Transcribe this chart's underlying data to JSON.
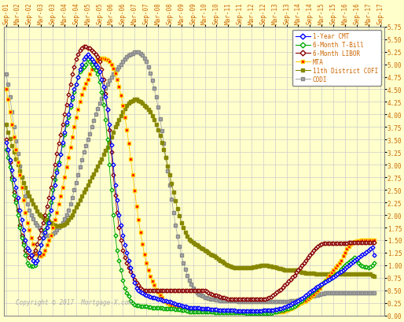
{
  "background_color": "#ffffcc",
  "grid_color": "#cccccc",
  "ylim": [
    0.0,
    5.75
  ],
  "yticks": [
    0.0,
    0.25,
    0.5,
    0.75,
    1.0,
    1.25,
    1.5,
    1.75,
    2.0,
    2.25,
    2.5,
    2.75,
    3.0,
    3.25,
    3.5,
    3.75,
    4.0,
    4.25,
    4.5,
    4.75,
    5.0,
    5.25,
    5.5,
    5.75
  ],
  "copyright_text": "Copyright © 2017  Mortgage-X.com",
  "x_tick_labels": [
    "Sep-01",
    "Mar-02",
    "Sep-02",
    "Mar-03",
    "Sep-03",
    "Mar-04",
    "Sep-04",
    "Mar-05",
    "Sep-05",
    "Mar-06",
    "Sep-06",
    "Mar-07",
    "Sep-07",
    "Mar-08",
    "Sep-08",
    "Mar-09",
    "Sep-09",
    "Mar-10",
    "Sep-10",
    "Mar-11",
    "Sep-11",
    "Mar-12",
    "Sep-12",
    "Mar-13",
    "Sep-13",
    "Mar-14",
    "Sep-14",
    "Mar-15",
    "Sep-15",
    "Mar-16",
    "Sep-16",
    "Mar-17",
    "Sep-17"
  ],
  "x_tick_positions": [
    0,
    6,
    12,
    18,
    24,
    30,
    36,
    42,
    48,
    54,
    60,
    66,
    72,
    78,
    84,
    90,
    96,
    102,
    108,
    114,
    120,
    126,
    132,
    138,
    144,
    150,
    156,
    162,
    168,
    174,
    180,
    186,
    192
  ],
  "series": {
    "1yr_cmt": {
      "label": "1-Year CMT",
      "color": "#0000ff",
      "marker": "D",
      "markersize": 2.5,
      "linewidth": 0.6,
      "markerfacecolor": "white",
      "values": [
        3.45,
        3.3,
        3.1,
        2.9,
        2.7,
        2.55,
        2.35,
        2.1,
        1.9,
        1.7,
        1.5,
        1.35,
        1.3,
        1.2,
        1.1,
        1.05,
        1.1,
        1.25,
        1.4,
        1.55,
        1.65,
        1.75,
        1.85,
        2.1,
        2.35,
        2.6,
        2.85,
        3.0,
        3.2,
        3.45,
        3.65,
        3.85,
        4.0,
        4.2,
        4.35,
        4.5,
        4.6,
        4.75,
        4.9,
        5.0,
        5.1,
        5.15,
        5.2,
        5.15,
        5.1,
        5.05,
        5.0,
        4.95,
        4.85,
        4.7,
        4.55,
        4.35,
        4.1,
        3.8,
        3.4,
        3.0,
        2.6,
        2.3,
        2.0,
        1.8,
        1.6,
        1.4,
        1.25,
        1.1,
        0.95,
        0.8,
        0.65,
        0.55,
        0.5,
        0.47,
        0.45,
        0.42,
        0.4,
        0.38,
        0.37,
        0.36,
        0.35,
        0.34,
        0.33,
        0.32,
        0.31,
        0.3,
        0.29,
        0.28,
        0.27,
        0.26,
        0.24,
        0.23,
        0.22,
        0.21,
        0.2,
        0.19,
        0.18,
        0.17,
        0.16,
        0.16,
        0.16,
        0.15,
        0.15,
        0.15,
        0.14,
        0.14,
        0.13,
        0.13,
        0.13,
        0.12,
        0.12,
        0.12,
        0.12,
        0.11,
        0.11,
        0.11,
        0.11,
        0.1,
        0.1,
        0.1,
        0.1,
        0.1,
        0.09,
        0.09,
        0.09,
        0.09,
        0.09,
        0.09,
        0.09,
        0.09,
        0.09,
        0.09,
        0.09,
        0.09,
        0.09,
        0.09,
        0.1,
        0.1,
        0.1,
        0.11,
        0.11,
        0.11,
        0.12,
        0.12,
        0.13,
        0.14,
        0.16,
        0.17,
        0.18,
        0.2,
        0.22,
        0.24,
        0.26,
        0.28,
        0.3,
        0.32,
        0.34,
        0.37,
        0.4,
        0.43,
        0.46,
        0.49,
        0.52,
        0.56,
        0.58,
        0.61,
        0.63,
        0.65,
        0.67,
        0.7,
        0.72,
        0.74,
        0.76,
        0.79,
        0.82,
        0.85,
        0.88,
        0.91,
        0.94,
        0.97,
        1.0,
        1.03,
        1.06,
        1.09,
        1.12,
        1.15,
        1.18,
        1.21,
        1.24,
        1.27,
        1.3,
        1.33,
        1.36,
        1.2
      ]
    },
    "6mo_tbill": {
      "label": "6-Month T-Bill",
      "color": "#00aa00",
      "marker": "D",
      "markersize": 2.5,
      "linewidth": 0.6,
      "markerfacecolor": "white",
      "values": [
        3.3,
        3.15,
        2.95,
        2.7,
        2.4,
        2.25,
        2.0,
        1.75,
        1.55,
        1.4,
        1.2,
        1.05,
        1.0,
        0.98,
        0.98,
        1.0,
        1.1,
        1.25,
        1.4,
        1.55,
        1.7,
        1.85,
        2.0,
        2.25,
        2.5,
        2.7,
        2.9,
        3.05,
        3.2,
        3.4,
        3.6,
        3.8,
        3.95,
        4.15,
        4.3,
        4.45,
        4.6,
        4.75,
        4.85,
        4.9,
        4.95,
        5.0,
        5.1,
        5.05,
        5.0,
        4.95,
        4.88,
        4.8,
        4.65,
        4.45,
        4.2,
        3.9,
        3.5,
        3.0,
        2.5,
        2.0,
        1.6,
        1.3,
        1.1,
        0.9,
        0.7,
        0.55,
        0.45,
        0.38,
        0.3,
        0.25,
        0.22,
        0.2,
        0.2,
        0.18,
        0.18,
        0.18,
        0.18,
        0.17,
        0.17,
        0.16,
        0.16,
        0.16,
        0.15,
        0.15,
        0.15,
        0.14,
        0.14,
        0.14,
        0.13,
        0.13,
        0.13,
        0.12,
        0.12,
        0.12,
        0.11,
        0.11,
        0.1,
        0.09,
        0.08,
        0.08,
        0.07,
        0.07,
        0.07,
        0.07,
        0.07,
        0.07,
        0.07,
        0.07,
        0.07,
        0.07,
        0.07,
        0.06,
        0.06,
        0.06,
        0.06,
        0.06,
        0.06,
        0.06,
        0.06,
        0.06,
        0.06,
        0.06,
        0.06,
        0.06,
        0.06,
        0.06,
        0.06,
        0.05,
        0.05,
        0.05,
        0.05,
        0.05,
        0.05,
        0.05,
        0.05,
        0.05,
        0.04,
        0.04,
        0.04,
        0.04,
        0.05,
        0.06,
        0.07,
        0.08,
        0.09,
        0.1,
        0.11,
        0.12,
        0.13,
        0.14,
        0.15,
        0.17,
        0.19,
        0.21,
        0.24,
        0.27,
        0.3,
        0.34,
        0.38,
        0.41,
        0.44,
        0.47,
        0.5,
        0.53,
        0.56,
        0.59,
        0.62,
        0.65,
        0.68,
        0.7,
        0.72,
        0.75,
        0.78,
        0.81,
        0.84,
        0.88,
        0.92,
        0.96,
        1.0,
        1.03,
        1.06,
        1.09,
        1.12,
        1.15,
        1.1,
        1.05,
        1.0,
        0.98,
        0.97,
        0.96,
        0.95,
        0.97,
        1.0,
        1.05
      ]
    },
    "6mo_libor": {
      "label": "6-Month LIBOR",
      "color": "#880000",
      "marker": "D",
      "markersize": 2.5,
      "linewidth": 0.6,
      "markerfacecolor": "white",
      "values": [
        3.5,
        3.3,
        3.05,
        2.75,
        2.45,
        2.3,
        2.1,
        1.8,
        1.6,
        1.45,
        1.3,
        1.2,
        1.15,
        1.18,
        1.22,
        1.3,
        1.42,
        1.55,
        1.7,
        1.85,
        2.0,
        2.18,
        2.35,
        2.55,
        2.75,
        3.0,
        3.22,
        3.42,
        3.6,
        3.8,
        4.0,
        4.2,
        4.4,
        4.6,
        4.8,
        4.95,
        5.1,
        5.2,
        5.28,
        5.32,
        5.35,
        5.35,
        5.33,
        5.32,
        5.28,
        5.25,
        5.2,
        5.15,
        5.05,
        4.9,
        4.7,
        4.42,
        4.1,
        3.7,
        3.25,
        2.8,
        2.4,
        2.05,
        1.75,
        1.5,
        1.3,
        1.15,
        1.05,
        0.95,
        0.88,
        0.8,
        0.72,
        0.65,
        0.6,
        0.55,
        0.52,
        0.5,
        0.5,
        0.5,
        0.5,
        0.5,
        0.5,
        0.5,
        0.5,
        0.5,
        0.5,
        0.5,
        0.5,
        0.5,
        0.5,
        0.5,
        0.5,
        0.5,
        0.5,
        0.5,
        0.5,
        0.5,
        0.5,
        0.5,
        0.5,
        0.5,
        0.5,
        0.5,
        0.5,
        0.5,
        0.5,
        0.5,
        0.5,
        0.48,
        0.45,
        0.43,
        0.42,
        0.41,
        0.4,
        0.38,
        0.37,
        0.36,
        0.35,
        0.34,
        0.33,
        0.33,
        0.32,
        0.32,
        0.32,
        0.32,
        0.32,
        0.32,
        0.32,
        0.32,
        0.32,
        0.32,
        0.32,
        0.32,
        0.32,
        0.32,
        0.32,
        0.32,
        0.32,
        0.33,
        0.34,
        0.35,
        0.37,
        0.4,
        0.43,
        0.46,
        0.49,
        0.52,
        0.56,
        0.6,
        0.64,
        0.68,
        0.72,
        0.76,
        0.8,
        0.85,
        0.9,
        0.95,
        1.0,
        1.05,
        1.1,
        1.15,
        1.2,
        1.25,
        1.3,
        1.35,
        1.38,
        1.4,
        1.42,
        1.43,
        1.44,
        1.44,
        1.44,
        1.44,
        1.44,
        1.44,
        1.44,
        1.44,
        1.44,
        1.44,
        1.44,
        1.44,
        1.45,
        1.45,
        1.45,
        1.45,
        1.45,
        1.45,
        1.45,
        1.45,
        1.45,
        1.45,
        1.45,
        1.45,
        1.45,
        1.45
      ]
    },
    "mta": {
      "label": "MTA",
      "color": "#ffcc00",
      "marker": "s",
      "markersize": 3.5,
      "linewidth": 0.6,
      "markerfacecolor": "#ff0000",
      "markeredgecolor": "#ffcc00",
      "values": [
        4.5,
        4.3,
        4.05,
        3.8,
        3.55,
        3.3,
        3.05,
        2.8,
        2.55,
        2.3,
        2.05,
        1.85,
        1.7,
        1.55,
        1.42,
        1.3,
        1.22,
        1.18,
        1.18,
        1.22,
        1.3,
        1.4,
        1.5,
        1.6,
        1.75,
        1.9,
        2.05,
        2.22,
        2.38,
        2.55,
        2.75,
        2.95,
        3.15,
        3.35,
        3.55,
        3.75,
        3.95,
        4.1,
        4.25,
        4.4,
        4.52,
        4.62,
        4.7,
        4.8,
        4.9,
        4.98,
        5.05,
        5.1,
        5.12,
        5.12,
        5.12,
        5.1,
        5.08,
        5.05,
        5.0,
        4.92,
        4.82,
        4.7,
        4.55,
        4.38,
        4.18,
        3.95,
        3.7,
        3.42,
        3.12,
        2.8,
        2.48,
        2.18,
        1.9,
        1.65,
        1.42,
        1.22,
        1.05,
        0.9,
        0.78,
        0.68,
        0.6,
        0.52,
        0.46,
        0.4,
        0.35,
        0.3,
        0.27,
        0.25,
        0.22,
        0.2,
        0.18,
        0.17,
        0.16,
        0.15,
        0.15,
        0.14,
        0.13,
        0.13,
        0.12,
        0.12,
        0.11,
        0.11,
        0.11,
        0.1,
        0.1,
        0.1,
        0.1,
        0.1,
        0.1,
        0.1,
        0.1,
        0.1,
        0.1,
        0.09,
        0.09,
        0.09,
        0.09,
        0.09,
        0.09,
        0.09,
        0.09,
        0.09,
        0.09,
        0.08,
        0.08,
        0.08,
        0.08,
        0.08,
        0.08,
        0.08,
        0.08,
        0.08,
        0.08,
        0.08,
        0.08,
        0.08,
        0.08,
        0.08,
        0.08,
        0.08,
        0.08,
        0.08,
        0.08,
        0.08,
        0.08,
        0.08,
        0.08,
        0.09,
        0.1,
        0.12,
        0.14,
        0.16,
        0.18,
        0.2,
        0.22,
        0.24,
        0.26,
        0.28,
        0.3,
        0.32,
        0.35,
        0.38,
        0.42,
        0.46,
        0.5,
        0.55,
        0.6,
        0.65,
        0.7,
        0.75,
        0.8,
        0.85,
        0.9,
        0.95,
        1.0,
        1.05,
        1.1,
        1.18,
        1.25,
        1.32,
        1.38,
        1.42,
        1.45,
        1.47,
        1.48,
        1.49,
        1.5,
        1.5,
        1.5,
        1.5,
        1.5,
        1.5,
        1.5,
        1.5
      ]
    },
    "cofi": {
      "label": "11th District COFI",
      "color": "#888800",
      "marker": "s",
      "markersize": 3.5,
      "linewidth": 0.6,
      "markerfacecolor": "#888800",
      "markeredgecolor": "#888800",
      "values": [
        3.8,
        3.65,
        3.52,
        3.38,
        3.25,
        3.12,
        3.0,
        2.88,
        2.75,
        2.65,
        2.55,
        2.45,
        2.38,
        2.3,
        2.22,
        2.15,
        2.08,
        2.02,
        1.98,
        1.95,
        1.92,
        1.9,
        1.88,
        1.85,
        1.82,
        1.8,
        1.78,
        1.78,
        1.78,
        1.8,
        1.82,
        1.85,
        1.9,
        1.95,
        2.0,
        2.08,
        2.15,
        2.22,
        2.3,
        2.38,
        2.45,
        2.52,
        2.6,
        2.68,
        2.75,
        2.82,
        2.9,
        2.98,
        3.05,
        3.12,
        3.2,
        3.28,
        3.35,
        3.45,
        3.55,
        3.65,
        3.75,
        3.82,
        3.9,
        3.98,
        4.05,
        4.12,
        4.18,
        4.22,
        4.25,
        4.28,
        4.3,
        4.3,
        4.28,
        4.25,
        4.22,
        4.18,
        4.14,
        4.1,
        4.05,
        3.98,
        3.9,
        3.8,
        3.7,
        3.58,
        3.45,
        3.3,
        3.15,
        2.98,
        2.8,
        2.62,
        2.45,
        2.28,
        2.12,
        1.98,
        1.85,
        1.75,
        1.65,
        1.58,
        1.52,
        1.48,
        1.45,
        1.42,
        1.4,
        1.38,
        1.35,
        1.32,
        1.3,
        1.28,
        1.25,
        1.22,
        1.2,
        1.18,
        1.15,
        1.12,
        1.1,
        1.08,
        1.05,
        1.02,
        1.0,
        0.98,
        0.96,
        0.95,
        0.95,
        0.95,
        0.95,
        0.95,
        0.95,
        0.95,
        0.95,
        0.95,
        0.95,
        0.96,
        0.97,
        0.98,
        0.99,
        1.0,
        1.0,
        1.0,
        1.0,
        0.99,
        0.98,
        0.97,
        0.96,
        0.95,
        0.94,
        0.93,
        0.92,
        0.91,
        0.9,
        0.9,
        0.9,
        0.9,
        0.9,
        0.9,
        0.9,
        0.88,
        0.86,
        0.85,
        0.84,
        0.84,
        0.84,
        0.84,
        0.84,
        0.83,
        0.83,
        0.83,
        0.83,
        0.82,
        0.82,
        0.82,
        0.82,
        0.82,
        0.82,
        0.82,
        0.82,
        0.82,
        0.82,
        0.82,
        0.82,
        0.82,
        0.82,
        0.82,
        0.82,
        0.82,
        0.82,
        0.82,
        0.82,
        0.82,
        0.82,
        0.82,
        0.82,
        0.82,
        0.8,
        0.78
      ]
    },
    "codi": {
      "label": "CODI",
      "color": "#aaaaaa",
      "marker": "s",
      "markersize": 3.5,
      "linewidth": 0.6,
      "markerfacecolor": "#aaaaaa",
      "markeredgecolor": "#888888",
      "values": [
        4.8,
        4.6,
        4.35,
        4.05,
        3.75,
        3.48,
        3.22,
        2.98,
        2.75,
        2.55,
        2.38,
        2.22,
        2.1,
        2.0,
        1.92,
        1.85,
        1.8,
        1.75,
        1.7,
        1.65,
        1.62,
        1.6,
        1.6,
        1.6,
        1.62,
        1.65,
        1.7,
        1.75,
        1.8,
        1.85,
        1.92,
        2.0,
        2.1,
        2.22,
        2.35,
        2.5,
        2.65,
        2.8,
        2.95,
        3.1,
        3.25,
        3.38,
        3.5,
        3.62,
        3.75,
        3.88,
        4.0,
        4.12,
        4.22,
        4.32,
        4.42,
        4.52,
        4.6,
        4.68,
        4.75,
        4.8,
        4.85,
        4.9,
        4.95,
        5.0,
        5.05,
        5.1,
        5.15,
        5.18,
        5.2,
        5.22,
        5.25,
        5.25,
        5.25,
        5.22,
        5.18,
        5.12,
        5.05,
        4.95,
        4.82,
        4.68,
        4.52,
        4.35,
        4.15,
        3.92,
        3.68,
        3.42,
        3.15,
        2.88,
        2.6,
        2.32,
        2.05,
        1.8,
        1.58,
        1.38,
        1.2,
        1.05,
        0.92,
        0.8,
        0.7,
        0.62,
        0.55,
        0.5,
        0.45,
        0.42,
        0.4,
        0.38,
        0.36,
        0.35,
        0.34,
        0.33,
        0.32,
        0.32,
        0.31,
        0.31,
        0.3,
        0.3,
        0.3,
        0.3,
        0.3,
        0.29,
        0.29,
        0.29,
        0.29,
        0.28,
        0.28,
        0.28,
        0.28,
        0.28,
        0.27,
        0.27,
        0.27,
        0.27,
        0.27,
        0.27,
        0.27,
        0.27,
        0.27,
        0.27,
        0.27,
        0.27,
        0.27,
        0.27,
        0.27,
        0.27,
        0.27,
        0.27,
        0.27,
        0.28,
        0.28,
        0.28,
        0.29,
        0.29,
        0.3,
        0.3,
        0.31,
        0.32,
        0.33,
        0.34,
        0.35,
        0.36,
        0.37,
        0.38,
        0.39,
        0.4,
        0.41,
        0.42,
        0.43,
        0.44,
        0.45,
        0.45,
        0.45,
        0.45,
        0.45,
        0.45,
        0.45,
        0.45,
        0.45,
        0.45,
        0.45,
        0.45,
        0.45,
        0.45,
        0.45,
        0.45,
        0.45,
        0.45,
        0.45,
        0.45,
        0.45,
        0.45,
        0.45,
        0.45,
        0.45,
        0.45
      ]
    }
  }
}
